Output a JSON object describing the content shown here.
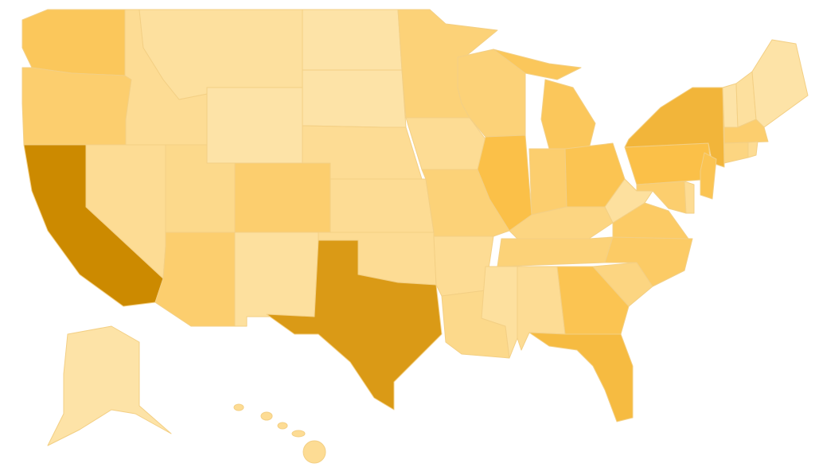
{
  "map": {
    "type": "choropleth",
    "region": "United States",
    "color_scale": {
      "low": "#fde3a7",
      "mid": "#fbc048",
      "high": "#cc8a00"
    },
    "background": "#ffffff",
    "border_color": "#f3cf84",
    "states": [
      {
        "id": "WA",
        "level": 0.4
      },
      {
        "id": "OR",
        "level": 0.3
      },
      {
        "id": "CA",
        "level": 1.0
      },
      {
        "id": "NV",
        "level": 0.1
      },
      {
        "id": "ID",
        "level": 0.1
      },
      {
        "id": "MT",
        "level": 0.05
      },
      {
        "id": "WY",
        "level": 0.0
      },
      {
        "id": "UT",
        "level": 0.15
      },
      {
        "id": "CO",
        "level": 0.3
      },
      {
        "id": "AZ",
        "level": 0.3
      },
      {
        "id": "NM",
        "level": 0.05
      },
      {
        "id": "ND",
        "level": 0.0
      },
      {
        "id": "SD",
        "level": 0.0
      },
      {
        "id": "NE",
        "level": 0.1
      },
      {
        "id": "KS",
        "level": 0.1
      },
      {
        "id": "OK",
        "level": 0.1
      },
      {
        "id": "TX",
        "level": 0.85
      },
      {
        "id": "MN",
        "level": 0.25
      },
      {
        "id": "IA",
        "level": 0.1
      },
      {
        "id": "MO",
        "level": 0.25
      },
      {
        "id": "AR",
        "level": 0.1
      },
      {
        "id": "LA",
        "level": 0.15
      },
      {
        "id": "WI",
        "level": 0.25
      },
      {
        "id": "IL",
        "level": 0.5
      },
      {
        "id": "MI",
        "level": 0.4
      },
      {
        "id": "IN",
        "level": 0.3
      },
      {
        "id": "OH",
        "level": 0.45
      },
      {
        "id": "KY",
        "level": 0.2
      },
      {
        "id": "TN",
        "level": 0.25
      },
      {
        "id": "MS",
        "level": 0.05
      },
      {
        "id": "AL",
        "level": 0.1
      },
      {
        "id": "GA",
        "level": 0.45
      },
      {
        "id": "FL",
        "level": 0.55
      },
      {
        "id": "SC",
        "level": 0.2
      },
      {
        "id": "NC",
        "level": 0.35
      },
      {
        "id": "VA",
        "level": 0.35
      },
      {
        "id": "WV",
        "level": 0.05
      },
      {
        "id": "PA",
        "level": 0.5
      },
      {
        "id": "NY",
        "level": 0.6
      },
      {
        "id": "NJ",
        "level": 0.45
      },
      {
        "id": "MD",
        "level": 0.3
      },
      {
        "id": "DE",
        "level": 0.1
      },
      {
        "id": "VT",
        "level": 0.0
      },
      {
        "id": "NH",
        "level": 0.05
      },
      {
        "id": "ME",
        "level": 0.0
      },
      {
        "id": "MA",
        "level": 0.3
      },
      {
        "id": "CT",
        "level": 0.2
      },
      {
        "id": "RI",
        "level": 0.1
      },
      {
        "id": "AK",
        "level": 0.0
      },
      {
        "id": "HI",
        "level": 0.1
      }
    ]
  }
}
